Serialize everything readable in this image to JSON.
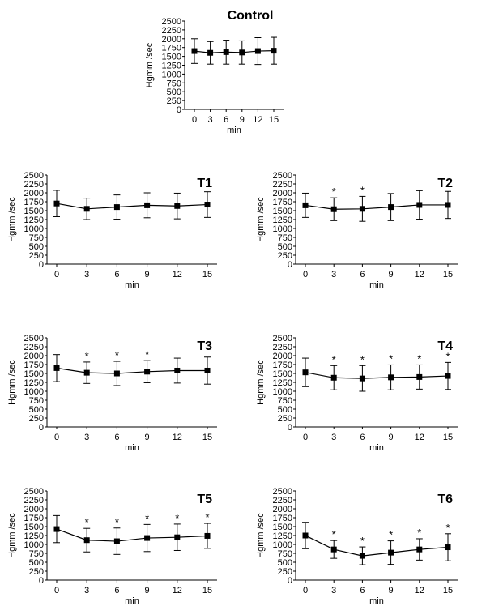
{
  "colors": {
    "line": "#000000",
    "marker": "#000000",
    "background": "#ffffff"
  },
  "chart_data": [
    {
      "type": "line",
      "title": "Control",
      "xlabel": "min",
      "ylabel": "Hgmm /sec",
      "x": [
        "0",
        "3",
        "6",
        "9",
        "12",
        "15"
      ],
      "yticks": [
        "0",
        "250",
        "500",
        "750",
        "1000",
        "1250",
        "1500",
        "1750",
        "2000",
        "2250",
        "2500"
      ],
      "ylim": [
        0,
        2500
      ],
      "grid": false,
      "values": [
        1650,
        1600,
        1620,
        1610,
        1650,
        1660
      ],
      "errors": [
        350,
        320,
        340,
        330,
        380,
        380
      ],
      "significant": [
        "",
        "",
        "",
        "",
        "",
        ""
      ]
    },
    {
      "type": "line",
      "title": "T1",
      "xlabel": "min",
      "ylabel": "Hgmm /sec",
      "x": [
        "0",
        "3",
        "6",
        "9",
        "12",
        "15"
      ],
      "yticks": [
        "0",
        "250",
        "500",
        "750",
        "1000",
        "1250",
        "1500",
        "1750",
        "2000",
        "2250",
        "2500"
      ],
      "ylim": [
        0,
        2500
      ],
      "grid": false,
      "values": [
        1700,
        1550,
        1600,
        1650,
        1630,
        1670
      ],
      "errors": [
        370,
        300,
        340,
        350,
        360,
        360
      ],
      "significant": [
        "",
        "",
        "",
        "",
        "",
        ""
      ]
    },
    {
      "type": "line",
      "title": "T2",
      "xlabel": "min",
      "ylabel": "Hgmm /sec",
      "x": [
        "0",
        "3",
        "6",
        "9",
        "12",
        "15"
      ],
      "yticks": [
        "0",
        "250",
        "500",
        "750",
        "1000",
        "1250",
        "1500",
        "1750",
        "2000",
        "2250",
        "2500"
      ],
      "ylim": [
        0,
        2500
      ],
      "grid": false,
      "values": [
        1650,
        1540,
        1550,
        1600,
        1660,
        1660
      ],
      "errors": [
        340,
        320,
        350,
        380,
        400,
        380
      ],
      "significant": [
        "",
        "*",
        "*",
        "",
        "",
        ""
      ]
    },
    {
      "type": "line",
      "title": "T3",
      "xlabel": "min",
      "ylabel": "Hgmm /sec",
      "x": [
        "0",
        "3",
        "6",
        "9",
        "12",
        "15"
      ],
      "yticks": [
        "0",
        "250",
        "500",
        "750",
        "1000",
        "1250",
        "1500",
        "1750",
        "2000",
        "2250",
        "2500"
      ],
      "ylim": [
        0,
        2500
      ],
      "grid": false,
      "values": [
        1650,
        1520,
        1500,
        1550,
        1580,
        1580
      ],
      "errors": [
        380,
        300,
        340,
        310,
        350,
        380
      ],
      "significant": [
        "",
        "*",
        "*",
        "*",
        "",
        ""
      ]
    },
    {
      "type": "line",
      "title": "T4",
      "xlabel": "min",
      "ylabel": "Hgmm /sec",
      "x": [
        "0",
        "3",
        "6",
        "9",
        "12",
        "15"
      ],
      "yticks": [
        "0",
        "250",
        "500",
        "750",
        "1000",
        "1250",
        "1500",
        "1750",
        "2000",
        "2250",
        "2500"
      ],
      "ylim": [
        0,
        2500
      ],
      "grid": false,
      "values": [
        1530,
        1380,
        1360,
        1390,
        1400,
        1430
      ],
      "errors": [
        400,
        340,
        360,
        350,
        340,
        380
      ],
      "significant": [
        "",
        "*",
        "*",
        "*",
        "*",
        "*"
      ]
    },
    {
      "type": "line",
      "title": "T5",
      "xlabel": "min",
      "ylabel": "Hgmm /sec",
      "x": [
        "0",
        "3",
        "6",
        "9",
        "12",
        "15"
      ],
      "yticks": [
        "0",
        "250",
        "500",
        "750",
        "1000",
        "1250",
        "1500",
        "1750",
        "2000",
        "2250",
        "2500"
      ],
      "ylim": [
        0,
        2500
      ],
      "grid": false,
      "values": [
        1430,
        1120,
        1090,
        1180,
        1200,
        1240
      ],
      "errors": [
        380,
        330,
        370,
        380,
        370,
        350
      ],
      "significant": [
        "",
        "*",
        "*",
        "*",
        "*",
        "*"
      ]
    },
    {
      "type": "line",
      "title": "T6",
      "xlabel": "min",
      "ylabel": "Hgmm /sec",
      "x": [
        "0",
        "3",
        "6",
        "9",
        "12",
        "15"
      ],
      "yticks": [
        "0",
        "250",
        "500",
        "750",
        "1000",
        "1250",
        "1500",
        "1750",
        "2000",
        "2250",
        "2500"
      ],
      "ylim": [
        0,
        2500
      ],
      "grid": false,
      "values": [
        1250,
        860,
        680,
        770,
        860,
        920
      ],
      "errors": [
        370,
        250,
        250,
        330,
        300,
        380
      ],
      "significant": [
        "",
        "*",
        "*",
        "*",
        "*",
        "*"
      ]
    }
  ]
}
